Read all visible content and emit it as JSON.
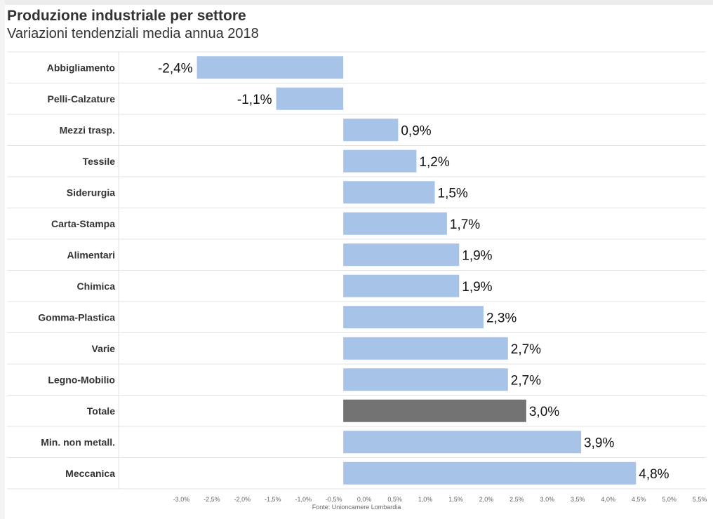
{
  "header": {
    "title": "Produzione industriale per settore",
    "subtitle": "Variazioni tendenziali media annua 2018"
  },
  "footer": {
    "source": "Fonte: Unioncamere Lombardia"
  },
  "colors": {
    "bar": "#a7c3e8",
    "highlight": "#727272",
    "gridline": "#e3e3e3"
  },
  "chart_data": {
    "type": "bar",
    "orientation": "horizontal",
    "title": "Produzione industriale per settore",
    "subtitle": "Variazioni tendenziali media annua 2018",
    "categories": [
      "Abbigliamento",
      "Pelli-Calzature",
      "Mezzi trasp.",
      "Tessile",
      "Siderurgia",
      "Carta-Stampa",
      "Alimentari",
      "Chimica",
      "Gomma-Plastica",
      "Varie",
      "Legno-Mobilio",
      "Totale",
      "Min. non metall.",
      "Meccanica"
    ],
    "values": [
      -2.4,
      -1.1,
      0.9,
      1.2,
      1.5,
      1.7,
      1.9,
      1.9,
      2.3,
      2.7,
      2.7,
      3.0,
      3.9,
      4.8
    ],
    "value_labels": [
      "-2,4%",
      "-1,1%",
      "0,9%",
      "1,2%",
      "1,5%",
      "1,7%",
      "1,9%",
      "1,9%",
      "2,3%",
      "2,7%",
      "2,7%",
      "3,0%",
      "3,9%",
      "4,8%"
    ],
    "highlight_category": "Totale",
    "xlim": [
      -3.5,
      5.5
    ],
    "x_ticks": [
      -3.0,
      -2.5,
      -2.0,
      -1.5,
      -1.0,
      -0.5,
      0.0,
      0.5,
      1.0,
      1.5,
      2.0,
      2.5,
      3.0,
      3.5,
      4.0,
      4.5,
      5.0,
      5.5
    ],
    "x_tick_labels": [
      "-3,0%",
      "-2,5%",
      "-2,0%",
      "-1,5%",
      "-1,0%",
      "-0,5%",
      "0,0%",
      "0,5%",
      "1,0%",
      "1,5%",
      "2,0%",
      "2,5%",
      "3,0%",
      "3,5%",
      "4,0%",
      "4,5%",
      "5,0%",
      "5,5%"
    ],
    "xlabel": "",
    "ylabel": "",
    "grid": "horizontal row separators",
    "legend": "none"
  }
}
